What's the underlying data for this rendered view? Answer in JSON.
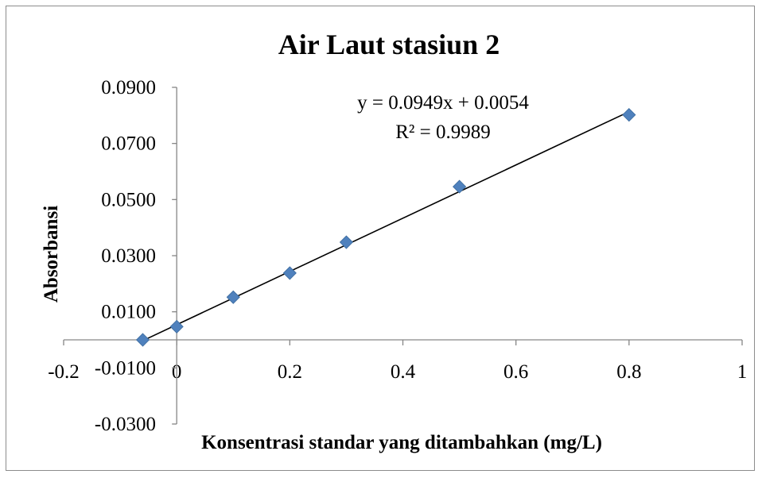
{
  "chart_data": {
    "type": "scatter",
    "title": "Air Laut stasiun 2",
    "xlabel": "Konsentrasi standar yang ditambahkan (mg/L)",
    "ylabel": "Absorbansi",
    "xlim": [
      -0.2,
      1
    ],
    "ylim": [
      -0.03,
      0.09
    ],
    "x_ticks": [
      -0.2,
      0,
      0.2,
      0.4,
      0.6,
      0.8,
      1
    ],
    "x_tick_labels": [
      "-0.2",
      "0",
      "0.2",
      "0.4",
      "0.6",
      "0.8",
      "1"
    ],
    "y_ticks": [
      0.09,
      0.07,
      0.05,
      0.03,
      0.01,
      -0.01,
      -0.03
    ],
    "y_tick_labels": [
      "0.0900",
      "0.0700",
      "0.0500",
      "0.0300",
      "0.0100",
      "-0.0100",
      "-0.0300"
    ],
    "grid": false,
    "legend": false,
    "marker_color": "#4f81bd",
    "line_color": "#000000",
    "points": [
      {
        "x": -0.06,
        "y": 0.0
      },
      {
        "x": 0.0,
        "y": 0.0047
      },
      {
        "x": 0.1,
        "y": 0.0152
      },
      {
        "x": 0.2,
        "y": 0.0238
      },
      {
        "x": 0.3,
        "y": 0.0348
      },
      {
        "x": 0.5,
        "y": 0.0546
      },
      {
        "x": 0.8,
        "y": 0.0802
      }
    ],
    "trendline": {
      "slope": 0.0949,
      "intercept": 0.0054,
      "x_range": [
        -0.06,
        0.8
      ]
    },
    "equation_label": "y = 0.0949x + 0.0054",
    "r2_label": "R² = 0.9989"
  }
}
